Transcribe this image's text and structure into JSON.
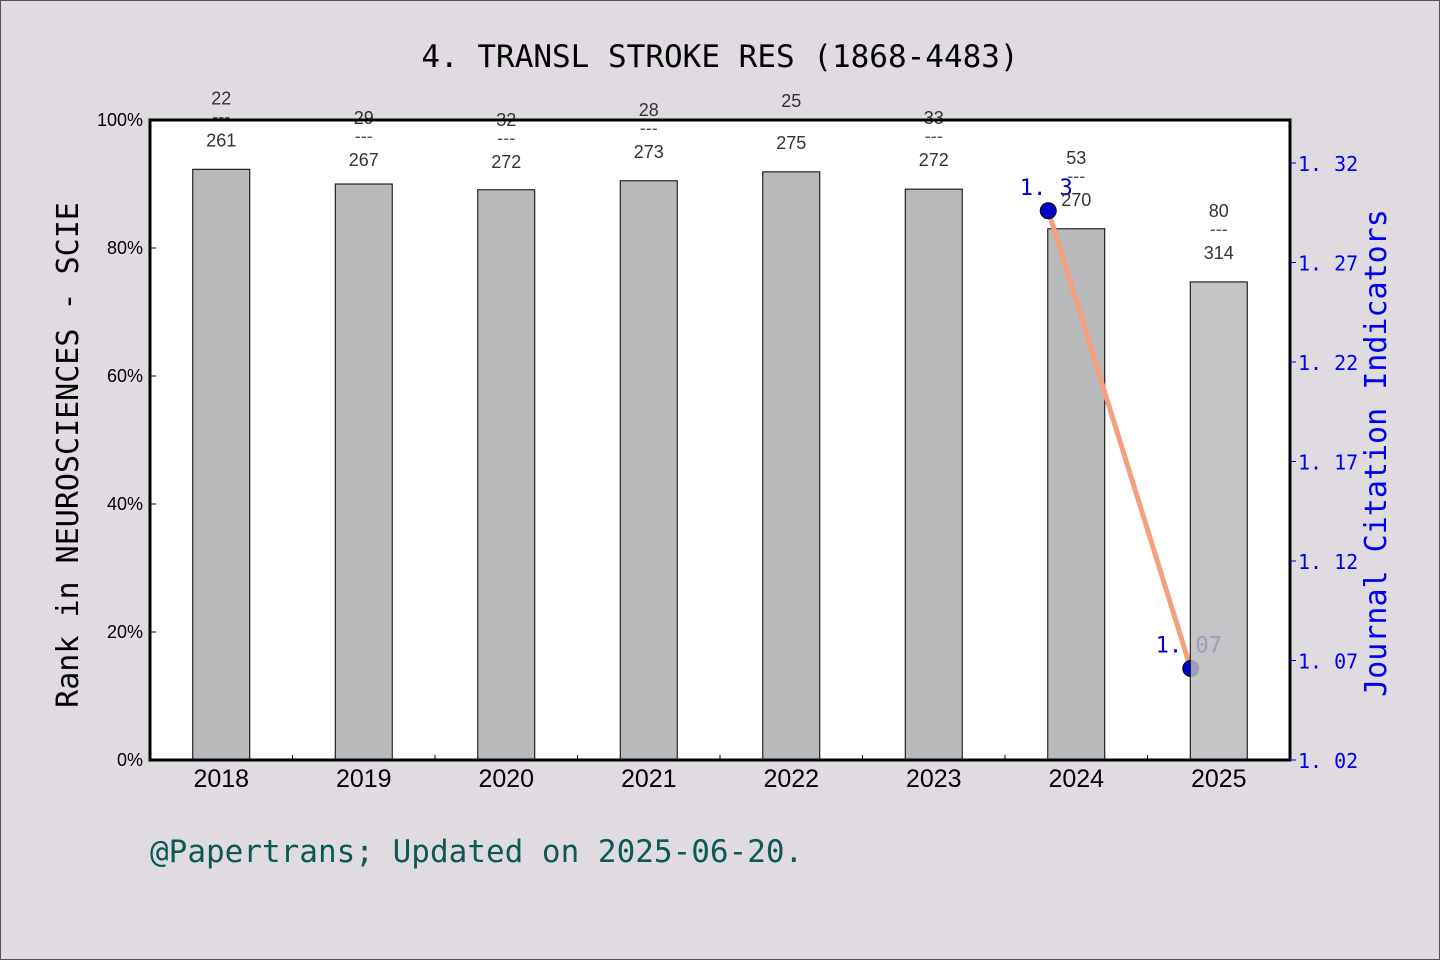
{
  "chart_data": {
    "type": "bar",
    "title": "4. TRANSL STROKE RES (1868-4483)",
    "xlabel": "",
    "ylabel": "Rank in NEUROSCIENCES - SCIE",
    "ylabel_right": "Journal Citation Indicators",
    "categories": [
      "2018",
      "2019",
      "2020",
      "2021",
      "2022",
      "2023",
      "2024",
      "2025"
    ],
    "series": [
      {
        "name": "Rank percentile in NEUROSCIENCES - SCIE",
        "axis": "left",
        "type": "bar",
        "values": [
          92.3,
          90.0,
          89.1,
          90.5,
          91.9,
          89.2,
          83.0,
          74.7
        ],
        "rank": [
          22,
          29,
          32,
          28,
          25,
          33,
          53,
          80
        ],
        "total": [
          261,
          267,
          272,
          273,
          275,
          272,
          270,
          314
        ],
        "labels": [
          "22\n---\n261",
          "29\n---\n267",
          "32\n---\n272",
          "28\n---\n273",
          "25\n---\n275",
          "33\n---\n272",
          "53\n---\n270",
          "80\n---\n314"
        ]
      },
      {
        "name": "Journal Citation Indicators",
        "axis": "right",
        "type": "line",
        "x": [
          "2024",
          "2025"
        ],
        "values": [
          1.3,
          1.07
        ],
        "labels": [
          "1.3",
          "1.07"
        ]
      }
    ],
    "ylim": [
      0,
      100
    ],
    "yticks": [
      "0%",
      "20%",
      "40%",
      "60%",
      "80%",
      "100%"
    ],
    "ylim_right": [
      1.02,
      1.34
    ],
    "yticks_right": [
      "1.02",
      "1.07",
      "1.12",
      "1.17",
      "1.22",
      "1.27",
      "1.32"
    ],
    "grid": false,
    "legend": "none",
    "colors": {
      "bar": "#b8b9bb",
      "line": "#f4a07c",
      "point": "#0000cc",
      "right_axis": "#0000ee",
      "footer": "#0d5a55",
      "background": "#dfdbe0"
    }
  },
  "footer": "@Papertrans; Updated on 2025-06-20."
}
